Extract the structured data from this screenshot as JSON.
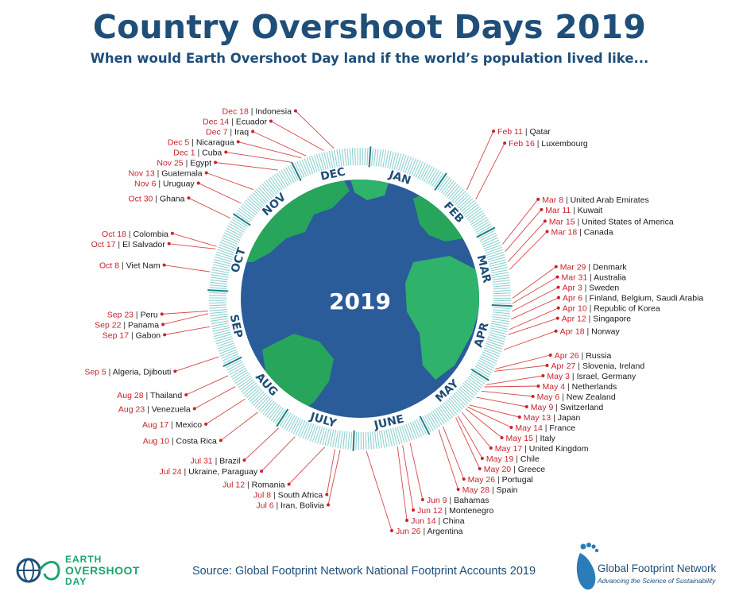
{
  "header": {
    "title": "Country Overshoot Days 2019",
    "subtitle": "When would Earth Overshoot Day land if the world’s population lived like..."
  },
  "footer": {
    "source": "Source: Global Footprint Network National Footprint Accounts 2019",
    "eod_logo": {
      "line1": "EARTH",
      "line2": "OVERSHOOT",
      "line3": "DAY"
    },
    "gfn_logo": {
      "name": "Global Footprint Network",
      "tagline": "Advancing the Science of Sustainability"
    }
  },
  "colors": {
    "navy": "#1f4e79",
    "date_red": "#c8242c",
    "leader_red": "#d9464a",
    "ring_teal": "#8fd1d1",
    "ocean": "#2b5c9a",
    "land": "#27a55a"
  },
  "chart_data": {
    "type": "radial-timeline",
    "center_label": "2019",
    "months": [
      "JAN",
      "FEB",
      "MAR",
      "APR",
      "MAY",
      "JUNE",
      "JULY",
      "AUG",
      "SEP",
      "OCT",
      "NOV",
      "DEC"
    ],
    "countries": [
      {
        "date": "Feb 11",
        "country": "Qatar"
      },
      {
        "date": "Feb 16",
        "country": "Luxembourg"
      },
      {
        "date": "Mar 8",
        "country": "United Arab Emirates"
      },
      {
        "date": "Mar 11",
        "country": "Kuwait"
      },
      {
        "date": "Mar 15",
        "country": "United States of America"
      },
      {
        "date": "Mar 18",
        "country": "Canada"
      },
      {
        "date": "Mar 29",
        "country": "Denmark"
      },
      {
        "date": "Mar 31",
        "country": "Australia"
      },
      {
        "date": "Apr 3",
        "country": "Sweden"
      },
      {
        "date": "Apr 6",
        "country": "Finland, Belgium, Saudi Arabia"
      },
      {
        "date": "Apr 10",
        "country": "Republic of Korea"
      },
      {
        "date": "Apr 12",
        "country": "Singapore"
      },
      {
        "date": "Apr 18",
        "country": "Norway"
      },
      {
        "date": "Apr 26",
        "country": "Russia"
      },
      {
        "date": "Apr 27",
        "country": "Slovenia, Ireland"
      },
      {
        "date": "May 3",
        "country": "Israel, Germany"
      },
      {
        "date": "May 4",
        "country": "Netherlands"
      },
      {
        "date": "May 6",
        "country": "New Zealand"
      },
      {
        "date": "May 9",
        "country": "Switzerland"
      },
      {
        "date": "May 13",
        "country": "Japan"
      },
      {
        "date": "May 14",
        "country": "France"
      },
      {
        "date": "May 15",
        "country": "Italy"
      },
      {
        "date": "May 17",
        "country": "United Kingdom"
      },
      {
        "date": "May 19",
        "country": "Chile"
      },
      {
        "date": "May 20",
        "country": "Greece"
      },
      {
        "date": "May 26",
        "country": "Portugal"
      },
      {
        "date": "May 28",
        "country": "Spain"
      },
      {
        "date": "Jun 9",
        "country": "Bahamas"
      },
      {
        "date": "Jun 12",
        "country": "Montenegro"
      },
      {
        "date": "Jun 14",
        "country": "China"
      },
      {
        "date": "Jun 26",
        "country": "Argentina"
      },
      {
        "date": "Jul 6",
        "country": "Iran, Bolivia"
      },
      {
        "date": "Jul 8",
        "country": "South Africa"
      },
      {
        "date": "Jul 12",
        "country": "Romania"
      },
      {
        "date": "Jul 24",
        "country": "Ukraine, Paraguay"
      },
      {
        "date": "Jul 31",
        "country": "Brazil"
      },
      {
        "date": "Aug 10",
        "country": "Costa Rica"
      },
      {
        "date": "Aug 17",
        "country": "Mexico"
      },
      {
        "date": "Aug 23",
        "country": "Venezuela"
      },
      {
        "date": "Aug 28",
        "country": "Thailand"
      },
      {
        "date": "Sep  5",
        "country": "Algeria, Djibouti"
      },
      {
        "date": "Sep 17",
        "country": "Gabon"
      },
      {
        "date": "Sep 22",
        "country": "Panama"
      },
      {
        "date": "Sep 23",
        "country": "Peru"
      },
      {
        "date": "Oct 8",
        "country": "Viet Nam"
      },
      {
        "date": "Oct 17",
        "country": "El Salvador"
      },
      {
        "date": "Oct 18",
        "country": "Colombia"
      },
      {
        "date": "Oct 30",
        "country": "Ghana"
      },
      {
        "date": "Nov 6",
        "country": "Uruguay"
      },
      {
        "date": "Nov 13",
        "country": "Guatemala"
      },
      {
        "date": "Nov 25",
        "country": "Egypt"
      },
      {
        "date": "Dec 1",
        "country": "Cuba"
      },
      {
        "date": "Dec 5",
        "country": "Nicaragua"
      },
      {
        "date": "Dec 7",
        "country": "Iraq"
      },
      {
        "date": "Dec 14",
        "country": "Ecuador"
      },
      {
        "date": "Dec 18",
        "country": "Indonesia"
      }
    ]
  }
}
